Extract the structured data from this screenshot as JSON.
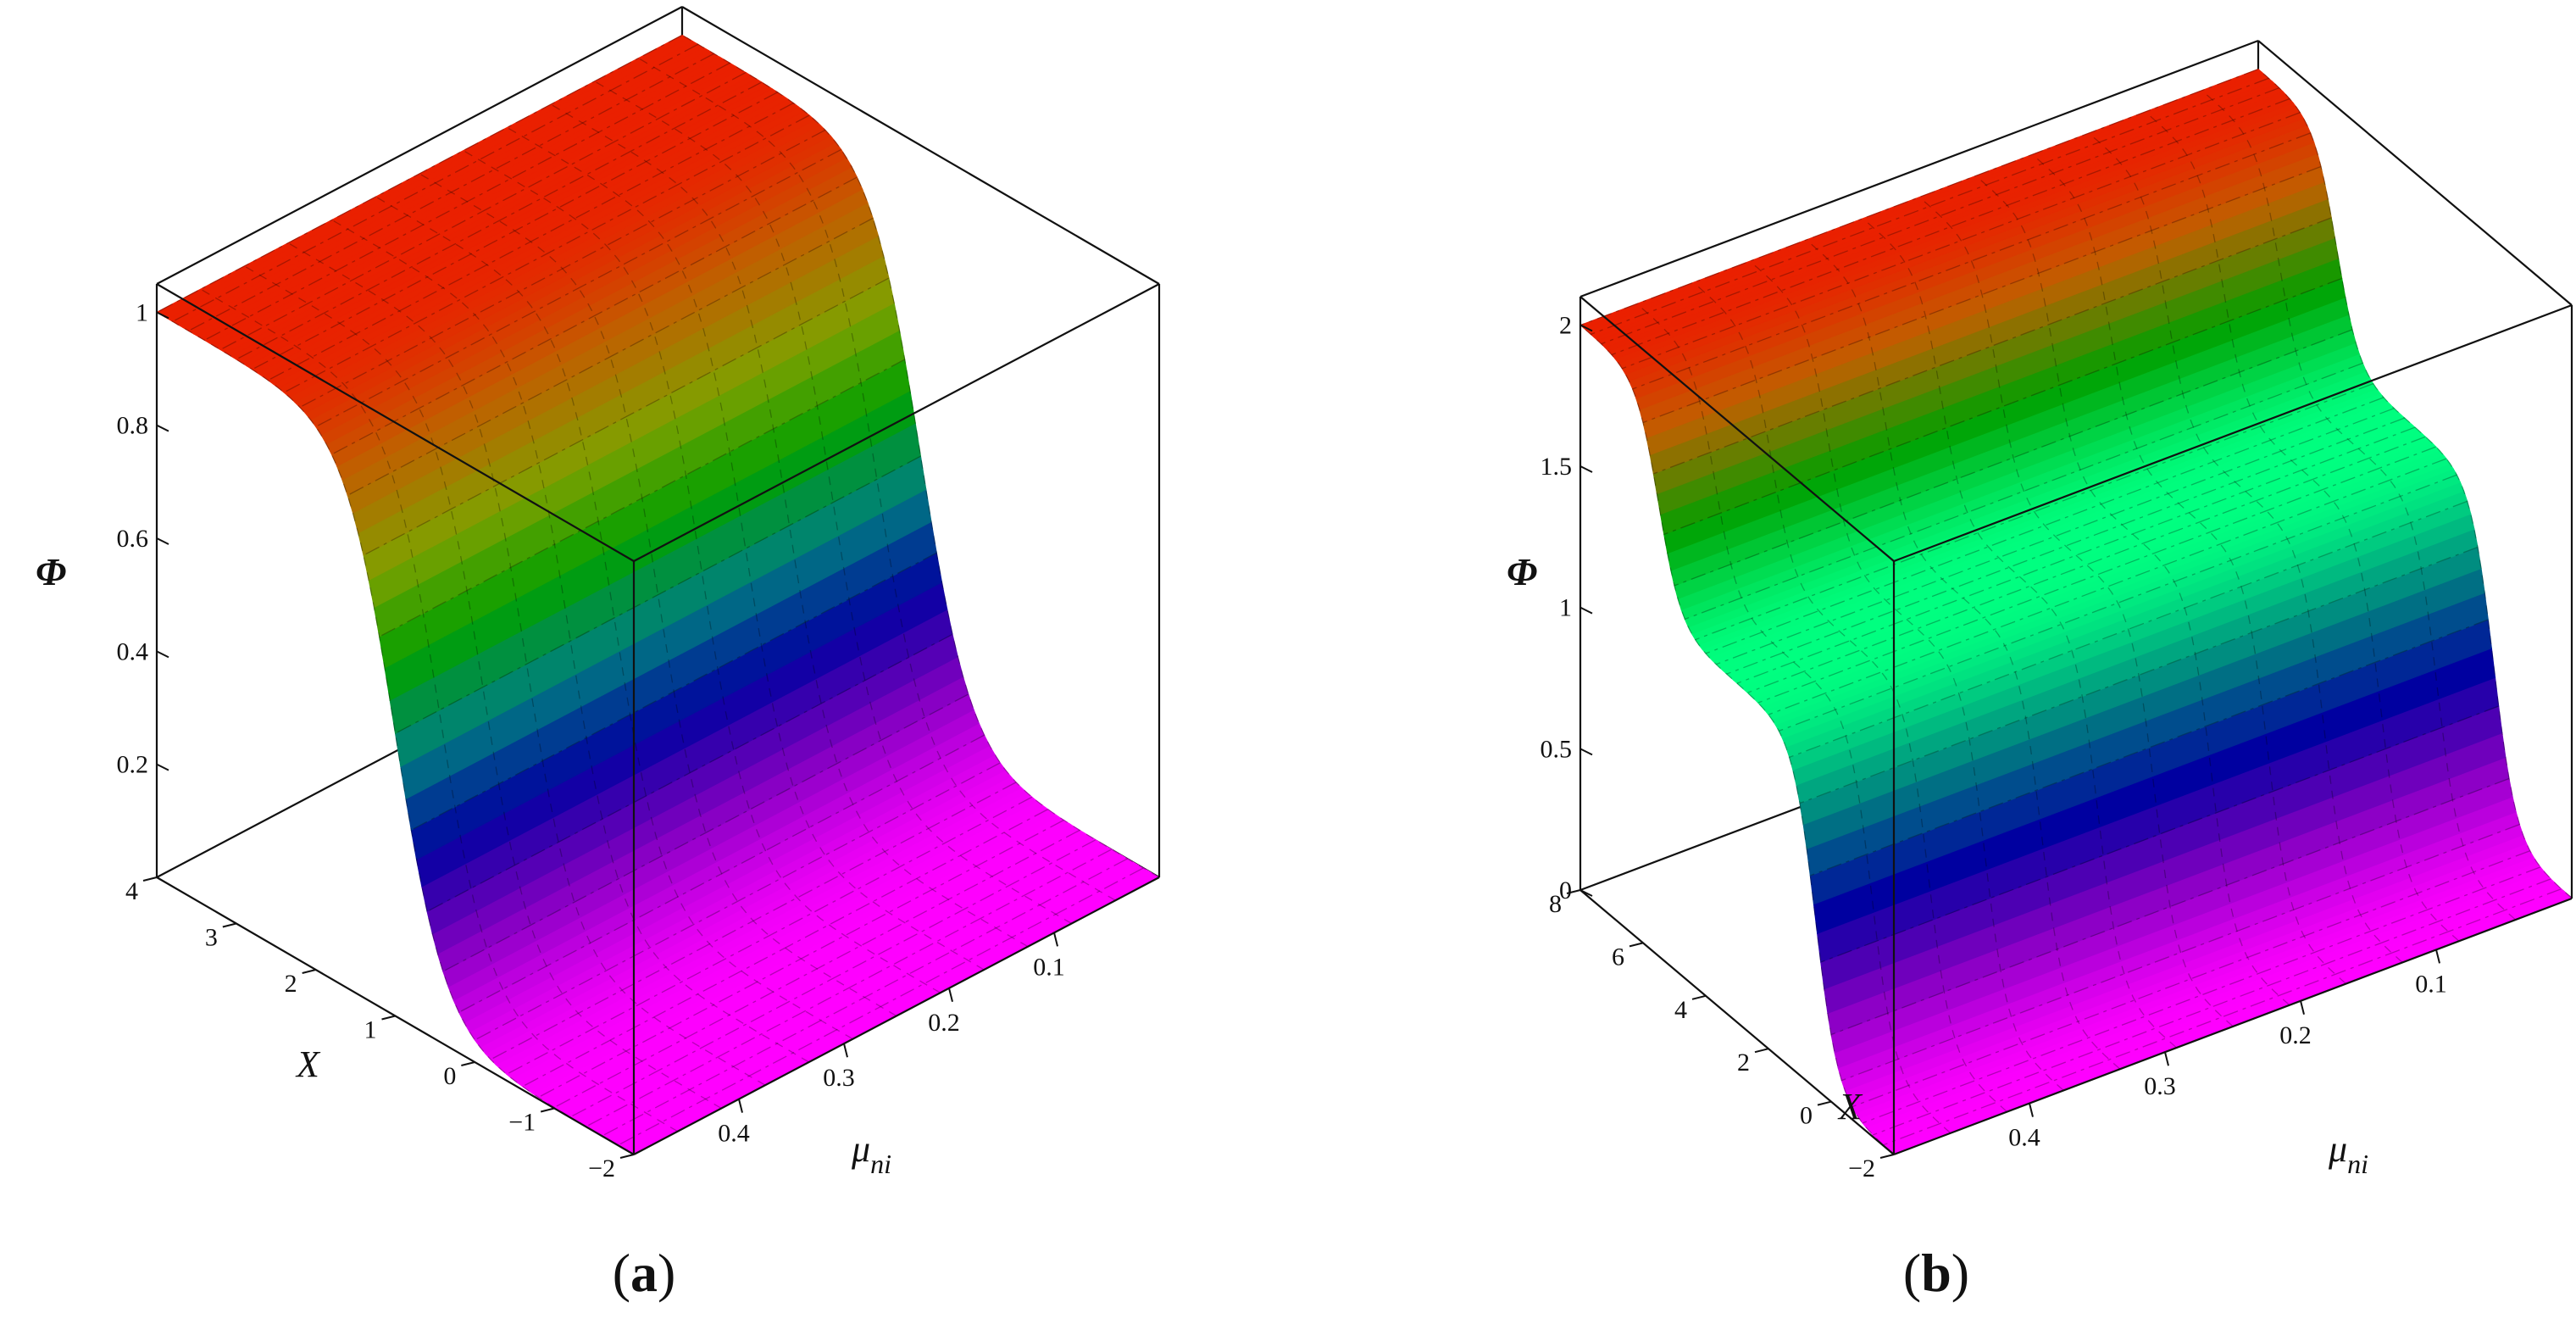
{
  "chart_data": [
    {
      "type": "surface",
      "caption": "a",
      "zlabel": "Φ",
      "xlabel": "X",
      "ylabel": "μ",
      "ylabel_sub": "ni",
      "x_range": [
        -2,
        4
      ],
      "y_range": [
        0,
        0.5
      ],
      "z_range": [
        0,
        1.05
      ],
      "x_ticks": [
        "-2",
        "-1",
        "0",
        "1",
        "2",
        "3",
        "4"
      ],
      "y_ticks": [
        "0.1",
        "0.2",
        "0.3",
        "0.4"
      ],
      "z_ticks": [
        "0.2",
        "0.4",
        "0.6",
        "0.8",
        "1"
      ],
      "surface": "single kink: Φ ≈ 1 at X=4, falls to Φ ≈ 0 at X=-2 with steep transition near X≈1; constant along μ_ni",
      "colormap": [
        "#ff00ff",
        "#8000c0",
        "#0000a0",
        "#008080",
        "#00a000",
        "#80a000",
        "#c06000",
        "#ff0000"
      ]
    },
    {
      "type": "surface",
      "caption": "b",
      "zlabel": "Φ",
      "xlabel": "X",
      "ylabel": "μ",
      "ylabel_sub": "ni",
      "x_range": [
        -2,
        8
      ],
      "y_range": [
        0,
        0.5
      ],
      "z_range": [
        0,
        2.1
      ],
      "x_ticks": [
        "-2",
        "0",
        "2",
        "4",
        "6",
        "8"
      ],
      "y_ticks": [
        "0.1",
        "0.2",
        "0.3",
        "0.4"
      ],
      "z_ticks": [
        "0",
        "0.5",
        "1",
        "1.5",
        "2"
      ],
      "surface": "double kink: Φ ≈ 2 at X=8, plateau near Φ ≈ 1.2, falls to Φ ≈ 0 at X=-2; constant along μ_ni",
      "colormap": [
        "#ff00ff",
        "#8000c0",
        "#0000a0",
        "#008080",
        "#00ff80",
        "#00a000",
        "#c06000",
        "#ff0000"
      ]
    }
  ]
}
